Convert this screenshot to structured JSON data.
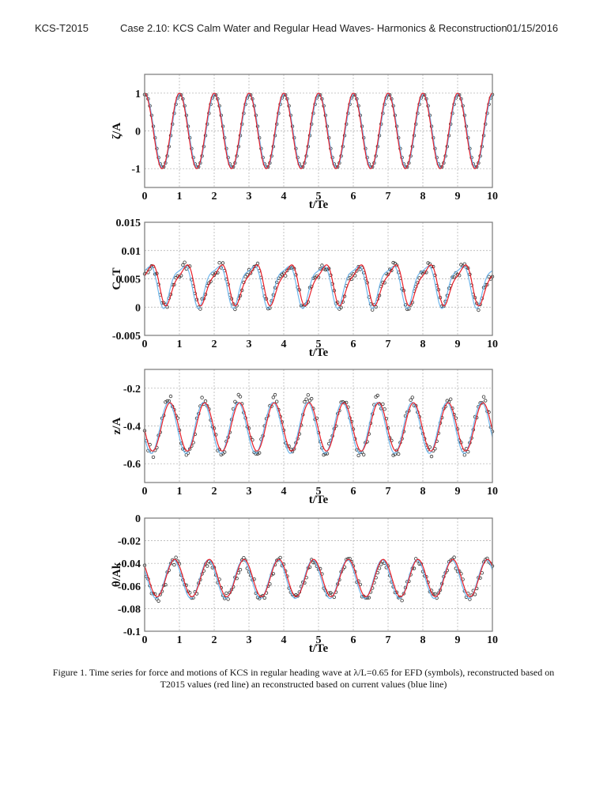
{
  "header": {
    "left": "KCS-T2015",
    "middle": "Case 2.10:  KCS Calm Water and Regular Head Waves- Harmonics & Reconstruction",
    "right": "01/15/2016"
  },
  "caption": {
    "line1": "Figure 1. Time series for force and motions of KCS in regular heading wave at λ/L=0.65 for EFD (symbols), reconstructed based on",
    "line2": "T2015 values (red line) an reconstructed based on current values (blue line)"
  },
  "colors": {
    "red_line": "#e8202a",
    "blue_line": "#6fb6ec",
    "symbols": "#333333",
    "grid": "#aaaaaa",
    "frame": "#777777"
  },
  "chart_data": [
    {
      "type": "line",
      "id": "zeta",
      "ylabel": "ζ/A",
      "xlabel": "t/Te",
      "xlim": [
        0,
        10
      ],
      "ylim": [
        -1.5,
        1.5
      ],
      "xticks": [
        "0",
        "1",
        "2",
        "3",
        "4",
        "5",
        "6",
        "7",
        "8",
        "9",
        "10"
      ],
      "yticks": [
        {
          "v": 1,
          "label": "1"
        },
        {
          "v": 0,
          "label": "0"
        },
        {
          "v": -1,
          "label": "-1"
        }
      ],
      "grid": true,
      "series": [
        {
          "name": "EFD (symbols)",
          "style": "symbols",
          "model": {
            "mean": 0,
            "amp": 0.97,
            "phase": 0.02,
            "amp2": 0,
            "phase2": 0
          }
        },
        {
          "name": "Reconstructed T2015 (red line)",
          "style": "red",
          "model": {
            "mean": 0,
            "amp": 1.0,
            "phase": 0.0,
            "amp2": 0,
            "phase2": 0
          }
        },
        {
          "name": "Reconstructed current (blue line)",
          "style": "blue",
          "model": {
            "mean": 0,
            "amp": 0.98,
            "phase": 0.02,
            "amp2": 0,
            "phase2": 0
          }
        }
      ],
      "summary": "cosine wave, period 1 t/Te, peaks +1 at integers, troughs -1 at half-integers"
    },
    {
      "type": "line",
      "id": "ct",
      "ylabel": "C_T",
      "xlabel": "t/Te",
      "xlim": [
        0,
        10
      ],
      "ylim": [
        -0.005,
        0.015
      ],
      "xticks": [
        "0",
        "1",
        "2",
        "3",
        "4",
        "5",
        "6",
        "7",
        "8",
        "9",
        "10"
      ],
      "yticks": [
        {
          "v": 0.015,
          "label": "0.015"
        },
        {
          "v": 0.01,
          "label": "0.01"
        },
        {
          "v": 0.005,
          "label": "0.005"
        },
        {
          "v": 0,
          "label": "0"
        },
        {
          "v": -0.005,
          "label": "-0.005"
        }
      ],
      "grid": true,
      "series": [
        {
          "name": "EFD (symbols)",
          "style": "symbols",
          "model": {
            "mean": 0.0042,
            "amp": 0.0033,
            "phase": 0.12,
            "amp2": 0.0009,
            "phase2": 0.3,
            "noise": 0.0008
          }
        },
        {
          "name": "Reconstructed T2015 (red line)",
          "style": "red",
          "model": {
            "mean": 0.0042,
            "amp": 0.0033,
            "phase": 0.15,
            "amp2": 0.0009,
            "phase2": 0.32
          }
        },
        {
          "name": "Reconstructed current (blue line)",
          "style": "blue",
          "model": {
            "mean": 0.0042,
            "amp": 0.0035,
            "phase": 0.07,
            "amp2": 0.001,
            "phase2": 0.28
          }
        }
      ],
      "summary": "sawtooth-like oscillation between ~0.0005 and ~0.008, period 1"
    },
    {
      "type": "line",
      "id": "heave",
      "ylabel": "z/A",
      "xlabel": "t/Te",
      "xlim": [
        0,
        10
      ],
      "ylim": [
        -0.7,
        -0.1
      ],
      "xticks": [
        "0",
        "1",
        "2",
        "3",
        "4",
        "5",
        "6",
        "7",
        "8",
        "9",
        "10"
      ],
      "yticks": [
        {
          "v": -0.2,
          "label": "-0.2"
        },
        {
          "v": -0.4,
          "label": "-0.4"
        },
        {
          "v": -0.6,
          "label": "-0.6"
        }
      ],
      "grid": true,
      "series": [
        {
          "name": "EFD (symbols)",
          "style": "symbols",
          "model": {
            "mean": -0.4,
            "amp": 0.14,
            "phase": 0.72,
            "amp2": 0,
            "phase2": 0,
            "noise": 0.03
          }
        },
        {
          "name": "Reconstructed T2015 (red line)",
          "style": "red",
          "model": {
            "mean": -0.405,
            "amp": 0.128,
            "phase": 0.73,
            "amp2": 0,
            "phase2": 0
          }
        },
        {
          "name": "Reconstructed current (blue line)",
          "style": "blue",
          "model": {
            "mean": -0.41,
            "amp": 0.135,
            "phase": 0.69,
            "amp2": 0,
            "phase2": 0
          }
        }
      ],
      "summary": "sinusoid mean ~-0.4, peaks ~-0.28 near t=0.7+n, troughs ~-0.53 near t=0.2+n"
    },
    {
      "type": "line",
      "id": "pitch",
      "ylabel": "θ/Ak",
      "xlabel": "t/Te",
      "xlim": [
        0,
        10
      ],
      "ylim": [
        -0.1,
        0
      ],
      "xticks": [
        "0",
        "1",
        "2",
        "3",
        "4",
        "5",
        "6",
        "7",
        "8",
        "9",
        "10"
      ],
      "yticks": [
        {
          "v": 0,
          "label": "0"
        },
        {
          "v": -0.02,
          "label": "-0.02"
        },
        {
          "v": -0.04,
          "label": "-0.04"
        },
        {
          "v": -0.06,
          "label": "-0.06"
        },
        {
          "v": -0.08,
          "label": "-0.08"
        },
        {
          "v": -0.1,
          "label": "-0.1"
        }
      ],
      "grid": true,
      "series": [
        {
          "name": "EFD (symbols)",
          "style": "symbols",
          "model": {
            "mean": -0.054,
            "amp": 0.016,
            "phase": 0.86,
            "amp2": 0,
            "phase2": 0,
            "noise": 0.004
          }
        },
        {
          "name": "Reconstructed T2015 (red line)",
          "style": "red",
          "model": {
            "mean": -0.053,
            "amp": 0.0165,
            "phase": 0.86,
            "amp2": 0,
            "phase2": 0
          }
        },
        {
          "name": "Reconstructed current (blue line)",
          "style": "blue",
          "model": {
            "mean": -0.054,
            "amp": 0.017,
            "phase": 0.83,
            "amp2": 0,
            "phase2": 0
          }
        }
      ],
      "summary": "sinusoid mean ~-0.053, peaks ~-0.037 near t=0.85+n, troughs ~-0.07 near t=0.35+n"
    }
  ]
}
